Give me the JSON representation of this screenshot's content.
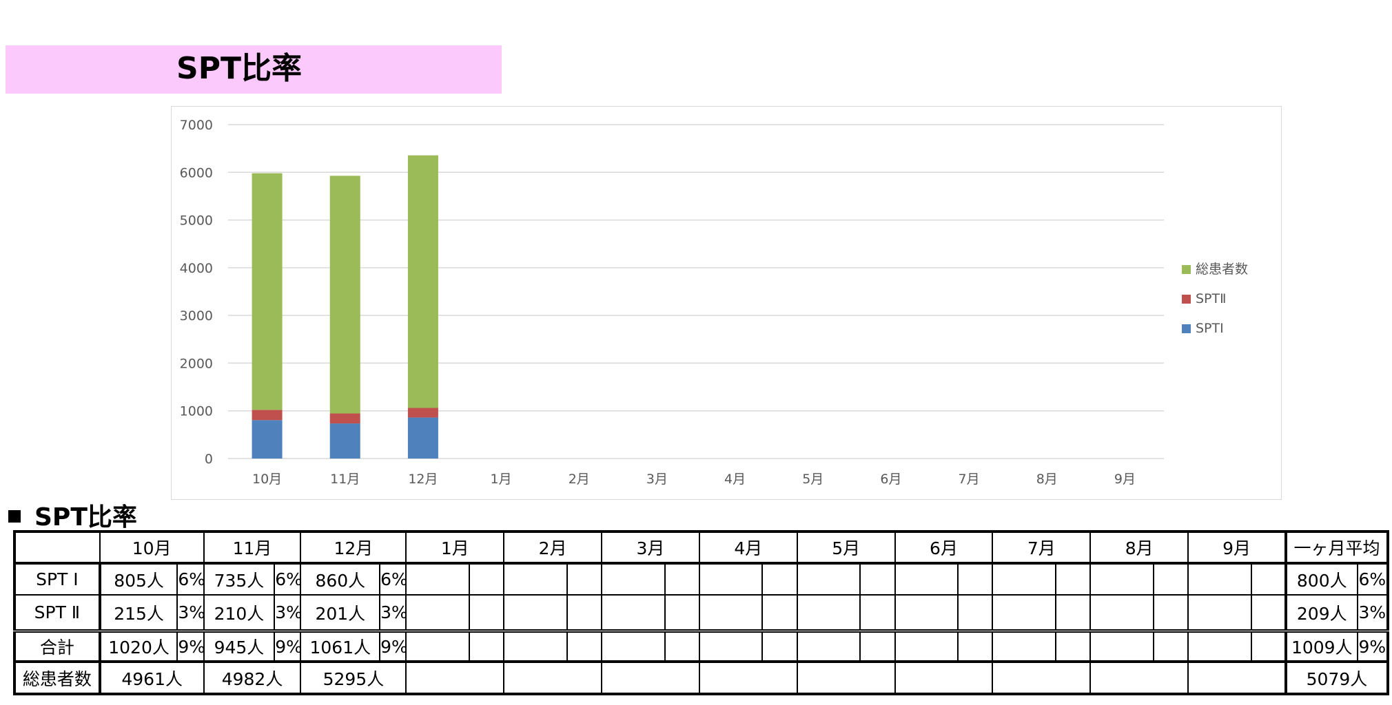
{
  "title": "SPT比率",
  "section_label": "SPT比率",
  "chart_data": {
    "type": "bar",
    "stacked": true,
    "title": "",
    "xlabel": "",
    "ylabel": "",
    "ylim": [
      0,
      7000
    ],
    "yticks": [
      0,
      1000,
      2000,
      3000,
      4000,
      5000,
      6000,
      7000
    ],
    "grid": true,
    "legend_position": "right",
    "categories": [
      "10月",
      "11月",
      "12月",
      "1月",
      "2月",
      "3月",
      "4月",
      "5月",
      "6月",
      "7月",
      "8月",
      "9月"
    ],
    "series": [
      {
        "name": "SPTⅠ",
        "color": "#4f81bd",
        "values": [
          805,
          735,
          860,
          null,
          null,
          null,
          null,
          null,
          null,
          null,
          null,
          null
        ]
      },
      {
        "name": "SPTⅡ",
        "color": "#c0504d",
        "values": [
          215,
          210,
          201,
          null,
          null,
          null,
          null,
          null,
          null,
          null,
          null,
          null
        ]
      },
      {
        "name": "総患者数",
        "color": "#9bbb59",
        "values": [
          4961,
          4982,
          5295,
          null,
          null,
          null,
          null,
          null,
          null,
          null,
          null,
          null
        ]
      }
    ],
    "legend_order": [
      "総患者数",
      "SPTⅡ",
      "SPTⅠ"
    ]
  },
  "table": {
    "months": [
      "10月",
      "11月",
      "12月",
      "1月",
      "2月",
      "3月",
      "4月",
      "5月",
      "6月",
      "7月",
      "8月",
      "9月"
    ],
    "avg_header": "一ヶ月平均",
    "rows": [
      {
        "label": "SPT Ⅰ",
        "values": [
          "805人",
          "735人",
          "860人",
          "",
          "",
          "",
          "",
          "",
          "",
          "",
          "",
          ""
        ],
        "pcts": [
          "6%",
          "6%",
          "6%",
          "",
          "",
          "",
          "",
          "",
          "",
          "",
          "",
          ""
        ],
        "avg": "800人",
        "avg_pct": "6%"
      },
      {
        "label": "SPT Ⅱ",
        "values": [
          "215人",
          "210人",
          "201人",
          "",
          "",
          "",
          "",
          "",
          "",
          "",
          "",
          ""
        ],
        "pcts": [
          "3%",
          "3%",
          "3%",
          "",
          "",
          "",
          "",
          "",
          "",
          "",
          "",
          ""
        ],
        "avg": "209人",
        "avg_pct": "3%"
      },
      {
        "label": "合計",
        "values": [
          "1020人",
          "945人",
          "1061人",
          "",
          "",
          "",
          "",
          "",
          "",
          "",
          "",
          ""
        ],
        "pcts": [
          "9%",
          "9%",
          "9%",
          "",
          "",
          "",
          "",
          "",
          "",
          "",
          "",
          ""
        ],
        "avg": "1009人",
        "avg_pct": "9%"
      }
    ],
    "total_row": {
      "label": "総患者数",
      "values": [
        "4961人",
        "4982人",
        "5295人",
        "",
        "",
        "",
        "",
        "",
        "",
        "",
        "",
        ""
      ],
      "avg": "5079人"
    }
  }
}
